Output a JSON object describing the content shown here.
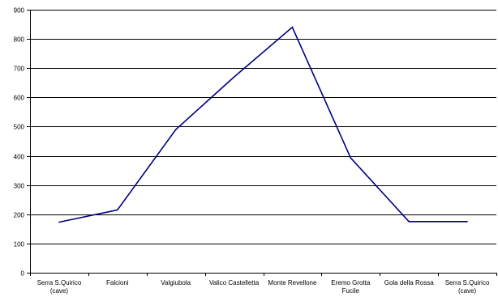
{
  "chart_data": {
    "type": "line",
    "title": "",
    "xlabel": "",
    "ylabel": "",
    "categories": [
      "Serra S.Quirico (cave)",
      "Falcioni",
      "Valgiubola",
      "Valico Castelletta",
      "Monte Revellone",
      "Eremo Grotta Fucile",
      "Gola della Rossa",
      "Serra S.Quirico (cave)"
    ],
    "category_label_lines": [
      [
        "Serra S.Quirico",
        "(cave)"
      ],
      [
        "Falcioni"
      ],
      [
        "Valgiubola"
      ],
      [
        "Valico Castelletta"
      ],
      [
        "Monte Revellone"
      ],
      [
        "Eremo Grotta",
        "Fucile"
      ],
      [
        "Gola della Rossa"
      ],
      [
        "Serra S.Quirico",
        "(cave)"
      ]
    ],
    "series": [
      {
        "values": [
          173,
          215,
          490,
          670,
          840,
          393,
          175,
          175
        ]
      }
    ],
    "ylim": [
      0,
      900
    ],
    "yticks": [
      0,
      100,
      200,
      300,
      400,
      500,
      600,
      700,
      800,
      900
    ],
    "grid": "horizontal",
    "legend": "none",
    "colors": {
      "line": "#000080",
      "grid": "#000000",
      "axis": "#000000",
      "text": "#000000"
    }
  }
}
